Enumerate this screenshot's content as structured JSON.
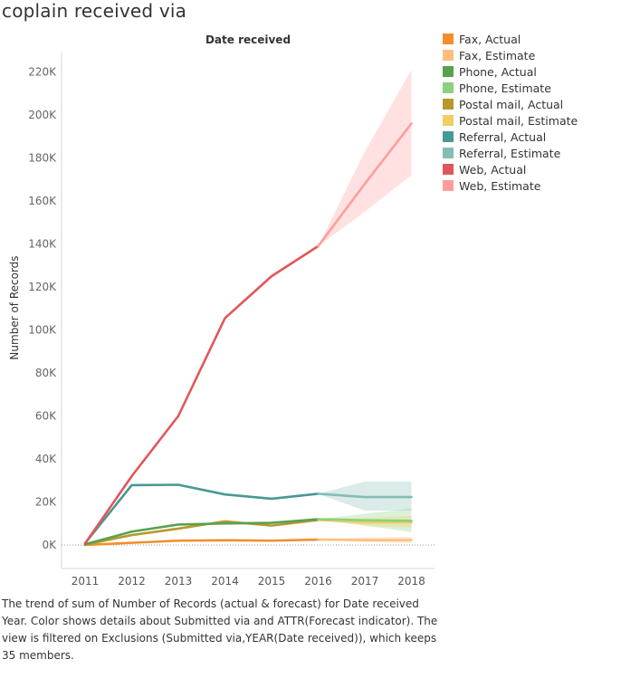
{
  "page_title": "coplain received via",
  "caption": "The trend of sum of Number of Records (actual & forecast)  for Date received Year.  Color shows details about Submitted via and ATTR(Forecast indicator).  The view is filtered on Exclusions (Submitted via,YEAR(Date received)), which keeps 35 members.",
  "legend": [
    {
      "label": "Fax, Actual",
      "color": "#f28e2b"
    },
    {
      "label": "Fax, Estimate",
      "color": "#ffbe7d"
    },
    {
      "label": "Phone, Actual",
      "color": "#59a14f"
    },
    {
      "label": "Phone, Estimate",
      "color": "#8cd17d"
    },
    {
      "label": "Postal mail, Actual",
      "color": "#b6992d"
    },
    {
      "label": "Postal mail, Estimate",
      "color": "#f1ce63"
    },
    {
      "label": "Referral, Actual",
      "color": "#499894"
    },
    {
      "label": "Referral, Estimate",
      "color": "#86bcb6"
    },
    {
      "label": "Web, Actual",
      "color": "#e15759"
    },
    {
      "label": "Web, Estimate",
      "color": "#ff9d9a"
    }
  ],
  "chart_data": {
    "type": "line",
    "title": "Date received",
    "xlabel": "",
    "ylabel": "Number of Records",
    "x": [
      2011,
      2012,
      2013,
      2014,
      2015,
      2016,
      2017,
      2018
    ],
    "x_tick_labels": [
      "2011",
      "2012",
      "2013",
      "2014",
      "2015",
      "2016",
      "2017",
      "2018"
    ],
    "ylim": [
      -12000,
      228000
    ],
    "y_ticks": [
      0,
      20000,
      40000,
      60000,
      80000,
      100000,
      120000,
      140000,
      160000,
      180000,
      200000,
      220000
    ],
    "y_tick_labels": [
      "0K",
      "20K",
      "40K",
      "60K",
      "80K",
      "100K",
      "120K",
      "140K",
      "160K",
      "180K",
      "200K",
      "220K"
    ],
    "grid": false,
    "legend_position": "right",
    "series": [
      {
        "name": "Fax, Actual",
        "color": "#f28e2b",
        "x": [
          2011,
          2012,
          2013,
          2014,
          2015,
          2016
        ],
        "y": [
          0,
          1000,
          2000,
          2200,
          2000,
          2500
        ]
      },
      {
        "name": "Fax, Estimate",
        "color": "#ffbe7d",
        "x": [
          2016,
          2017,
          2018
        ],
        "y": [
          2500,
          2300,
          2300
        ],
        "band_low": [
          2500,
          1200,
          900
        ],
        "band_high": [
          2500,
          3600,
          3800
        ]
      },
      {
        "name": "Phone, Actual",
        "color": "#59a14f",
        "x": [
          2011,
          2012,
          2013,
          2014,
          2015,
          2016
        ],
        "y": [
          300,
          6200,
          9500,
          10000,
          10300,
          12000
        ]
      },
      {
        "name": "Phone, Estimate",
        "color": "#8cd17d",
        "x": [
          2016,
          2017,
          2018
        ],
        "y": [
          12000,
          11500,
          11200
        ],
        "band_low": [
          12000,
          9000,
          6000
        ],
        "band_high": [
          12000,
          14500,
          17000
        ]
      },
      {
        "name": "Postal mail, Actual",
        "color": "#b6992d",
        "x": [
          2011,
          2012,
          2013,
          2014,
          2015,
          2016
        ],
        "y": [
          200,
          4600,
          7600,
          11000,
          9000,
          11600
        ]
      },
      {
        "name": "Postal mail, Estimate",
        "color": "#f1ce63",
        "x": [
          2016,
          2017,
          2018
        ],
        "y": [
          11600,
          10500,
          10500
        ],
        "band_low": [
          11600,
          9000,
          8000
        ],
        "band_high": [
          11600,
          12500,
          13500
        ]
      },
      {
        "name": "Referral, Actual",
        "color": "#499894",
        "x": [
          2011,
          2012,
          2013,
          2014,
          2015,
          2016
        ],
        "y": [
          800,
          27800,
          28000,
          23500,
          21500,
          23800
        ]
      },
      {
        "name": "Referral, Estimate",
        "color": "#86bcb6",
        "x": [
          2016,
          2017,
          2018
        ],
        "y": [
          23800,
          22300,
          22300
        ],
        "band_low": [
          23800,
          16000,
          16000
        ],
        "band_high": [
          23800,
          29500,
          29500
        ]
      },
      {
        "name": "Web, Actual",
        "color": "#e15759",
        "x": [
          2011,
          2012,
          2013,
          2014,
          2015,
          2016
        ],
        "y": [
          700,
          32000,
          60000,
          105500,
          125000,
          139000
        ]
      },
      {
        "name": "Web, Estimate",
        "color": "#ff9d9a",
        "x": [
          2016,
          2017,
          2018
        ],
        "y": [
          139000,
          168000,
          196000
        ],
        "band_low": [
          139000,
          155000,
          172000
        ],
        "band_high": [
          139000,
          183000,
          221000
        ]
      }
    ]
  }
}
